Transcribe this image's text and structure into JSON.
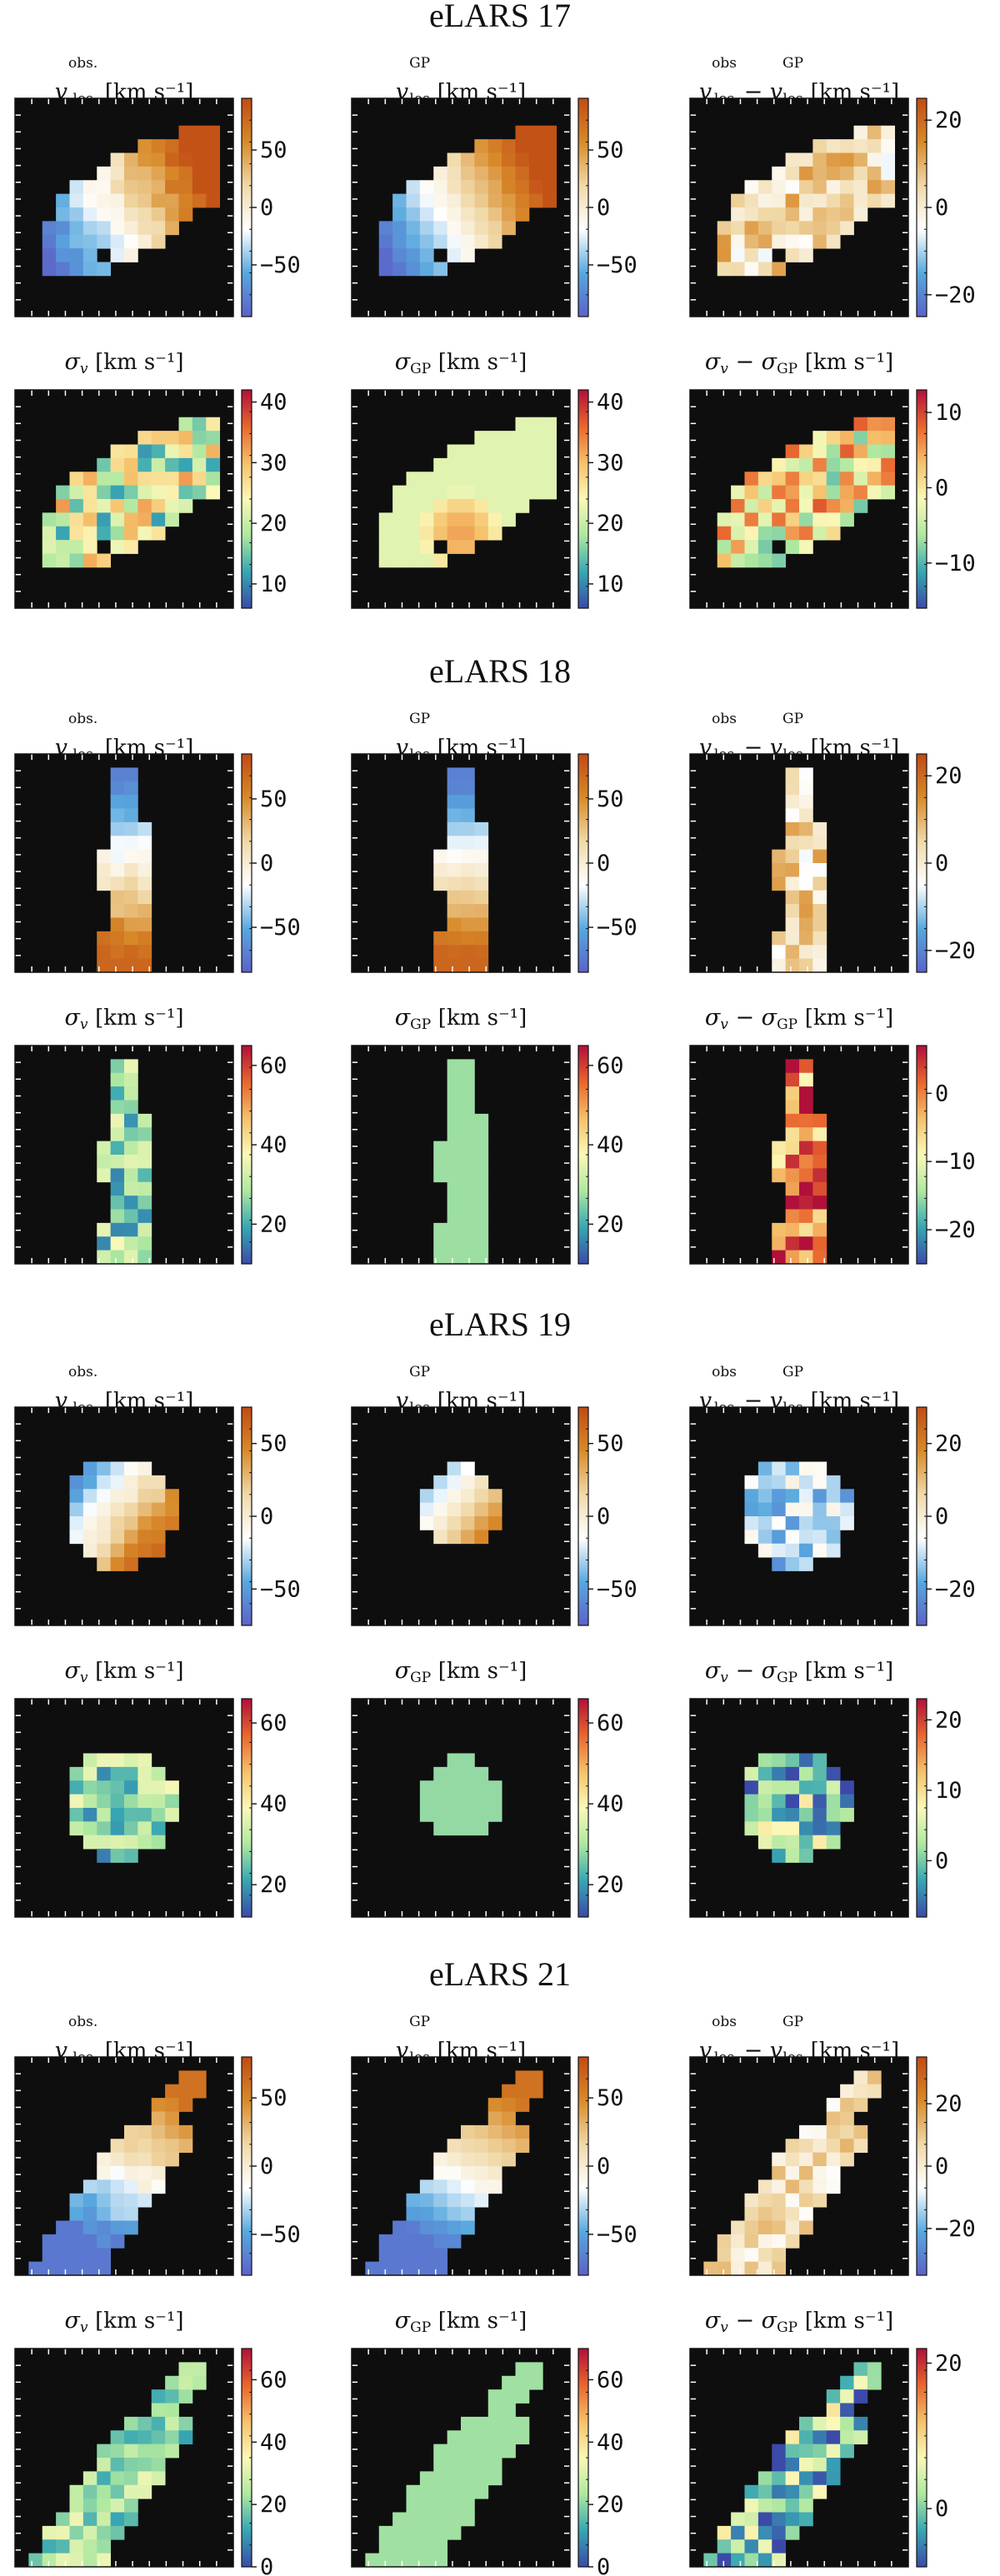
{
  "figure": {
    "colors": {
      "background_map": "#0e0e0e",
      "velocity_colormap": [
        "#5b62c8",
        "#58a8de",
        "#ffffff",
        "#f0d9a8",
        "#d88a2a",
        "#c04a14"
      ],
      "sigma_colormap": [
        "#3b4aa8",
        "#37a6b3",
        "#aee8a0",
        "#fbf8b8",
        "#f5c06a",
        "#e8652e",
        "#b0103a"
      ]
    },
    "galaxies": [
      {
        "name": "eLARS 17",
        "panels": [
          {
            "kind": "vlos_obs",
            "title_sub": "los",
            "title_sup": "obs.",
            "unit": "[km s⁻¹]",
            "cbar": {
              "range": [
                -95,
                95
              ],
              "ticks": [
                {
                  "v": 50,
                  "l": "50"
                },
                {
                  "v": 0,
                  "l": "0"
                },
                {
                  "v": -50,
                  "l": "−50"
                }
              ]
            }
          },
          {
            "kind": "vlos_gp",
            "title_sub": "los",
            "title_sup": "GP",
            "unit": "[km s⁻¹]",
            "cbar": {
              "range": [
                -95,
                95
              ],
              "ticks": [
                {
                  "v": 50,
                  "l": "50"
                },
                {
                  "v": 0,
                  "l": "0"
                },
                {
                  "v": -50,
                  "l": "−50"
                }
              ]
            }
          },
          {
            "kind": "vlos_res",
            "title_sub": "los",
            "title_sup": "obs",
            "title_sub2": "los",
            "title_sup2": "GP",
            "unit": "[km s⁻¹]",
            "cbar": {
              "range": [
                -25,
                25
              ],
              "ticks": [
                {
                  "v": 20,
                  "l": "20"
                },
                {
                  "v": 0,
                  "l": "0"
                },
                {
                  "v": -20,
                  "l": "−20"
                }
              ]
            }
          },
          {
            "kind": "sigma_obs",
            "unit": "[km s⁻¹]",
            "cbar": {
              "range": [
                6,
                42
              ],
              "ticks": [
                {
                  "v": 40,
                  "l": "40"
                },
                {
                  "v": 30,
                  "l": "30"
                },
                {
                  "v": 20,
                  "l": "20"
                },
                {
                  "v": 10,
                  "l": "10"
                }
              ]
            }
          },
          {
            "kind": "sigma_gp",
            "title_sub": "GP",
            "unit": "[km s⁻¹]",
            "cbar": {
              "range": [
                6,
                42
              ],
              "ticks": [
                {
                  "v": 40,
                  "l": "40"
                },
                {
                  "v": 30,
                  "l": "30"
                },
                {
                  "v": 20,
                  "l": "20"
                },
                {
                  "v": 10,
                  "l": "10"
                }
              ]
            }
          },
          {
            "kind": "sigma_res",
            "title_sub": "GP",
            "unit": "[km s⁻¹]",
            "cbar": {
              "range": [
                -16,
                13
              ],
              "ticks": [
                {
                  "v": 10,
                  "l": "10"
                },
                {
                  "v": 0,
                  "l": "0"
                },
                {
                  "v": -10,
                  "l": "−10"
                }
              ]
            }
          }
        ]
      },
      {
        "name": "eLARS 18",
        "panels": [
          {
            "kind": "vlos_obs",
            "title_sub": "los",
            "title_sup": "obs.",
            "unit": "[km s⁻¹]",
            "cbar": {
              "range": [
                -85,
                85
              ],
              "ticks": [
                {
                  "v": 50,
                  "l": "50"
                },
                {
                  "v": 0,
                  "l": "0"
                },
                {
                  "v": -50,
                  "l": "−50"
                }
              ]
            }
          },
          {
            "kind": "vlos_gp",
            "title_sub": "los",
            "title_sup": "GP",
            "unit": "[km s⁻¹]",
            "cbar": {
              "range": [
                -85,
                85
              ],
              "ticks": [
                {
                  "v": 50,
                  "l": "50"
                },
                {
                  "v": 0,
                  "l": "0"
                },
                {
                  "v": -50,
                  "l": "−50"
                }
              ]
            }
          },
          {
            "kind": "vlos_res",
            "title_sub": "los",
            "title_sup": "obs",
            "title_sub2": "los",
            "title_sup2": "GP",
            "unit": "[km s⁻¹]",
            "cbar": {
              "range": [
                -25,
                25
              ],
              "ticks": [
                {
                  "v": 20,
                  "l": "20"
                },
                {
                  "v": 0,
                  "l": "0"
                },
                {
                  "v": -20,
                  "l": "−20"
                }
              ]
            }
          },
          {
            "kind": "sigma_obs",
            "unit": "[km s⁻¹]",
            "cbar": {
              "range": [
                10,
                65
              ],
              "ticks": [
                {
                  "v": 60,
                  "l": "60"
                },
                {
                  "v": 40,
                  "l": "40"
                },
                {
                  "v": 20,
                  "l": "20"
                }
              ]
            }
          },
          {
            "kind": "sigma_gp",
            "title_sub": "GP",
            "unit": "[km s⁻¹]",
            "cbar": {
              "range": [
                10,
                65
              ],
              "ticks": [
                {
                  "v": 60,
                  "l": "60"
                },
                {
                  "v": 40,
                  "l": "40"
                },
                {
                  "v": 20,
                  "l": "20"
                }
              ]
            }
          },
          {
            "kind": "sigma_res",
            "title_sub": "GP",
            "unit": "[km s⁻¹]",
            "cbar": {
              "range": [
                -25,
                7
              ],
              "ticks": [
                {
                  "v": 0,
                  "l": "0"
                },
                {
                  "v": -10,
                  "l": "−10"
                },
                {
                  "v": -20,
                  "l": "−20"
                }
              ]
            }
          }
        ]
      },
      {
        "name": "eLARS 19",
        "panels": [
          {
            "kind": "vlos_obs",
            "title_sub": "los",
            "title_sup": "obs.",
            "unit": "[km s⁻¹]",
            "cbar": {
              "range": [
                -75,
                75
              ],
              "ticks": [
                {
                  "v": 50,
                  "l": "50"
                },
                {
                  "v": 0,
                  "l": "0"
                },
                {
                  "v": -50,
                  "l": "−50"
                }
              ]
            }
          },
          {
            "kind": "vlos_gp",
            "title_sub": "los",
            "title_sup": "GP",
            "unit": "[km s⁻¹]",
            "cbar": {
              "range": [
                -75,
                75
              ],
              "ticks": [
                {
                  "v": 50,
                  "l": "50"
                },
                {
                  "v": 0,
                  "l": "0"
                },
                {
                  "v": -50,
                  "l": "−50"
                }
              ]
            }
          },
          {
            "kind": "vlos_res",
            "title_sub": "los",
            "title_sup": "obs",
            "title_sub2": "los",
            "title_sup2": "GP",
            "unit": "[km s⁻¹]",
            "cbar": {
              "range": [
                -30,
                30
              ],
              "ticks": [
                {
                  "v": 20,
                  "l": "20"
                },
                {
                  "v": 0,
                  "l": "0"
                },
                {
                  "v": -20,
                  "l": "−20"
                }
              ]
            }
          },
          {
            "kind": "sigma_obs",
            "unit": "[km s⁻¹]",
            "cbar": {
              "range": [
                12,
                66
              ],
              "ticks": [
                {
                  "v": 60,
                  "l": "60"
                },
                {
                  "v": 40,
                  "l": "40"
                },
                {
                  "v": 20,
                  "l": "20"
                }
              ]
            }
          },
          {
            "kind": "sigma_gp",
            "title_sub": "GP",
            "unit": "[km s⁻¹]",
            "cbar": {
              "range": [
                12,
                66
              ],
              "ticks": [
                {
                  "v": 60,
                  "l": "60"
                },
                {
                  "v": 40,
                  "l": "40"
                },
                {
                  "v": 20,
                  "l": "20"
                }
              ]
            }
          },
          {
            "kind": "sigma_res",
            "title_sub": "GP",
            "unit": "[km s⁻¹]",
            "cbar": {
              "range": [
                -8,
                23
              ],
              "ticks": [
                {
                  "v": 20,
                  "l": "20"
                },
                {
                  "v": 10,
                  "l": "10"
                },
                {
                  "v": 0,
                  "l": "0"
                }
              ]
            }
          }
        ]
      },
      {
        "name": "eLARS 21",
        "panels": [
          {
            "kind": "vlos_obs",
            "title_sub": "los",
            "title_sup": "obs.",
            "unit": "[km s⁻¹]",
            "cbar": {
              "range": [
                -80,
                80
              ],
              "ticks": [
                {
                  "v": 50,
                  "l": "50"
                },
                {
                  "v": 0,
                  "l": "0"
                },
                {
                  "v": -50,
                  "l": "−50"
                }
              ]
            }
          },
          {
            "kind": "vlos_gp",
            "title_sub": "los",
            "title_sup": "GP",
            "unit": "[km s⁻¹]",
            "cbar": {
              "range": [
                -80,
                80
              ],
              "ticks": [
                {
                  "v": 50,
                  "l": "50"
                },
                {
                  "v": 0,
                  "l": "0"
                },
                {
                  "v": -50,
                  "l": "−50"
                }
              ]
            }
          },
          {
            "kind": "vlos_res",
            "title_sub": "los",
            "title_sup": "obs",
            "title_sub2": "los",
            "title_sup2": "GP",
            "unit": "[km s⁻¹]",
            "cbar": {
              "range": [
                -35,
                35
              ],
              "ticks": [
                {
                  "v": 20,
                  "l": "20"
                },
                {
                  "v": 0,
                  "l": "0"
                },
                {
                  "v": -20,
                  "l": "−20"
                }
              ]
            }
          },
          {
            "kind": "sigma_obs",
            "unit": "[km s⁻¹]",
            "cbar": {
              "range": [
                0,
                70
              ],
              "ticks": [
                {
                  "v": 60,
                  "l": "60"
                },
                {
                  "v": 40,
                  "l": "40"
                },
                {
                  "v": 20,
                  "l": "20"
                },
                {
                  "v": 0,
                  "l": "0"
                }
              ]
            }
          },
          {
            "kind": "sigma_gp",
            "title_sub": "GP",
            "unit": "[km s⁻¹]",
            "cbar": {
              "range": [
                0,
                70
              ],
              "ticks": [
                {
                  "v": 60,
                  "l": "60"
                },
                {
                  "v": 40,
                  "l": "40"
                },
                {
                  "v": 20,
                  "l": "20"
                },
                {
                  "v": 0,
                  "l": "0"
                }
              ]
            }
          },
          {
            "kind": "sigma_res",
            "title_sub": "GP",
            "unit": "[km s⁻¹]",
            "cbar": {
              "range": [
                -8,
                22
              ],
              "ticks": [
                {
                  "v": 20,
                  "l": "20"
                },
                {
                  "v": 0,
                  "l": "0"
                }
              ]
            }
          }
        ]
      }
    ]
  }
}
